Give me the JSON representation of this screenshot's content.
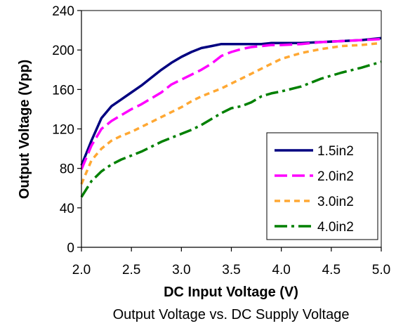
{
  "chart_data": {
    "type": "line",
    "title": "",
    "caption": "Output Voltage vs. DC Supply Voltage",
    "xlabel": "DC Input Voltage (V)",
    "ylabel": "Output Voltage (Vpp)",
    "xlim": [
      2.0,
      5.0
    ],
    "ylim": [
      0,
      240
    ],
    "xticks": [
      "2.0",
      "2.5",
      "3.0",
      "3.5",
      "4.0",
      "4.5",
      "5.0"
    ],
    "yticks": [
      "0",
      "40",
      "80",
      "120",
      "160",
      "200",
      "240"
    ],
    "grid": false,
    "legend_position": "bottom-right",
    "series": [
      {
        "name": "1.5in2",
        "color": "#000080",
        "dash": "solid",
        "x": [
          2.0,
          2.1,
          2.2,
          2.3,
          2.4,
          2.5,
          2.6,
          2.7,
          2.8,
          2.9,
          3.0,
          3.1,
          3.2,
          3.3,
          3.4,
          3.5,
          3.6,
          3.7,
          3.8,
          3.9,
          4.0,
          4.2,
          4.4,
          4.6,
          4.8,
          5.0
        ],
        "y": [
          83,
          108,
          131,
          143,
          150,
          157,
          164,
          172,
          180,
          187,
          193,
          198,
          202,
          204,
          206,
          206,
          206,
          206,
          206,
          207,
          207,
          207,
          208,
          209,
          210,
          212
        ]
      },
      {
        "name": "2.0in2",
        "color": "#FF00FF",
        "dash": "long-dash",
        "x": [
          2.0,
          2.1,
          2.2,
          2.3,
          2.4,
          2.5,
          2.6,
          2.7,
          2.8,
          2.9,
          3.0,
          3.1,
          3.2,
          3.3,
          3.4,
          3.5,
          3.6,
          3.7,
          3.8,
          3.9,
          4.0,
          4.2,
          4.4,
          4.6,
          4.8,
          5.0
        ],
        "y": [
          79,
          103,
          120,
          128,
          134,
          140,
          145,
          151,
          157,
          165,
          170,
          175,
          180,
          186,
          194,
          198,
          201,
          203,
          204,
          205,
          205,
          206,
          208,
          209,
          210,
          211
        ]
      },
      {
        "name": "3.0in2",
        "color": "#FFA833",
        "dash": "short-dash",
        "x": [
          2.0,
          2.1,
          2.2,
          2.3,
          2.4,
          2.5,
          2.6,
          2.7,
          2.8,
          2.9,
          3.0,
          3.1,
          3.2,
          3.3,
          3.4,
          3.5,
          3.6,
          3.7,
          3.8,
          3.9,
          4.0,
          4.2,
          4.4,
          4.6,
          4.8,
          5.0
        ],
        "y": [
          64,
          88,
          100,
          108,
          113,
          117,
          122,
          127,
          132,
          137,
          142,
          148,
          153,
          157,
          161,
          166,
          171,
          176,
          181,
          186,
          191,
          197,
          201,
          204,
          205,
          207
        ]
      },
      {
        "name": "4.0in2",
        "color": "#008000",
        "dash": "long-dash-dot",
        "x": [
          2.0,
          2.1,
          2.2,
          2.3,
          2.4,
          2.5,
          2.6,
          2.7,
          2.8,
          2.9,
          3.0,
          3.1,
          3.2,
          3.3,
          3.4,
          3.5,
          3.6,
          3.7,
          3.8,
          3.9,
          4.0,
          4.2,
          4.4,
          4.6,
          4.8,
          5.0
        ],
        "y": [
          51,
          67,
          77,
          84,
          89,
          93,
          97,
          102,
          107,
          111,
          115,
          119,
          124,
          130,
          136,
          141,
          143,
          147,
          153,
          156,
          158,
          163,
          171,
          177,
          182,
          188
        ]
      }
    ]
  }
}
